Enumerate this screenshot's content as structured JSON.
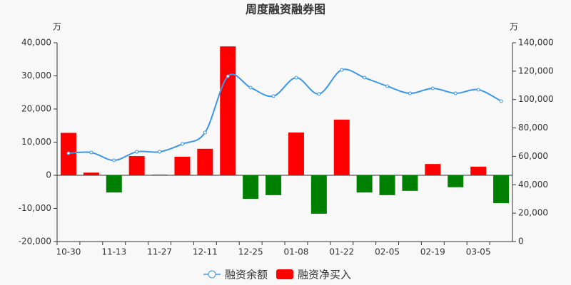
{
  "chart_data": {
    "type": "bar-line",
    "title": "周度融资融券图",
    "y_unit": "万",
    "y2_unit": "万",
    "categories": [
      "10-30",
      null,
      "11-13",
      null,
      "11-27",
      null,
      "12-11",
      null,
      "12-25",
      null,
      "01-08",
      null,
      "01-22",
      null,
      "02-05",
      null,
      "02-19",
      null,
      "03-05",
      null
    ],
    "series": [
      {
        "name": "融资余额",
        "type": "line",
        "axis": "y2",
        "color": "#3a97ea",
        "values": [
          62200,
          62700,
          57200,
          63200,
          63200,
          68700,
          76800,
          116400,
          108400,
          102400,
          115400,
          103900,
          120900,
          115400,
          109400,
          104400,
          107900,
          104400,
          106900,
          98900
        ]
      },
      {
        "name": "融资净买入",
        "type": "bar",
        "axis": "y",
        "color": "#ff0000",
        "negative_color": "#008000",
        "values": [
          12800,
          800,
          -5200,
          5800,
          200,
          5600,
          8000,
          38900,
          -7100,
          -6000,
          12900,
          -11600,
          16800,
          -5200,
          -6000,
          -4700,
          3400,
          -3600,
          2600,
          -8400
        ]
      }
    ],
    "ylim": [
      -20000,
      40000
    ],
    "yticks": [
      {
        "value": -20000,
        "label": "-20,000"
      },
      {
        "value": -10000,
        "label": "-10,000"
      },
      0,
      {
        "value": 10000,
        "label": "10,000"
      },
      {
        "value": 20000,
        "label": "20,000"
      },
      {
        "value": 30000,
        "label": "30,000"
      },
      {
        "value": 40000,
        "label": "40,000"
      }
    ],
    "y2lim": [
      0,
      140000
    ],
    "y2ticks": [
      0,
      {
        "value": 20000,
        "label": "20,000"
      },
      {
        "value": 40000,
        "label": "40,000"
      },
      {
        "value": 60000,
        "label": "60,000"
      },
      {
        "value": 80000,
        "label": "80,000"
      },
      {
        "value": 100000,
        "label": "100,000"
      },
      {
        "value": 120000,
        "label": "120,000"
      },
      {
        "value": 140000,
        "label": "140,000"
      }
    ],
    "grid": false,
    "legend": "bottom"
  }
}
